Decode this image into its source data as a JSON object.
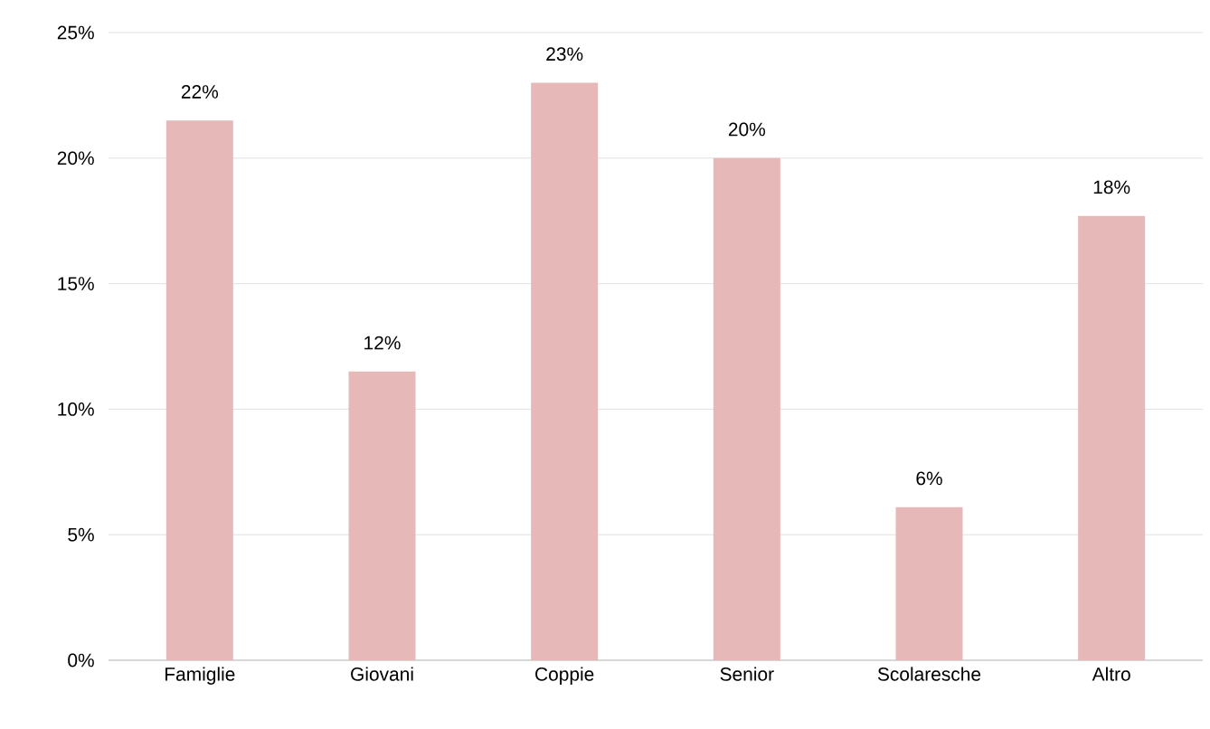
{
  "chart_data": {
    "type": "bar",
    "categories": [
      "Famiglie",
      "Giovani",
      "Coppie",
      "Senior",
      "Scolaresche",
      "Altro"
    ],
    "values": [
      21.5,
      11.5,
      23.0,
      20.0,
      6.1,
      17.7
    ],
    "value_labels": [
      "22%",
      "12%",
      "23%",
      "20%",
      "6%",
      "18%"
    ],
    "color": "#e6b8b7",
    "ylim": [
      0,
      25
    ],
    "yticks": [
      {
        "value": 0,
        "label": "0%"
      },
      {
        "value": 5,
        "label": "5%"
      },
      {
        "value": 10,
        "label": "10%"
      },
      {
        "value": 15,
        "label": "15%"
      },
      {
        "value": 20,
        "label": "20%"
      },
      {
        "value": 25,
        "label": "25%"
      }
    ],
    "grid": "y"
  }
}
